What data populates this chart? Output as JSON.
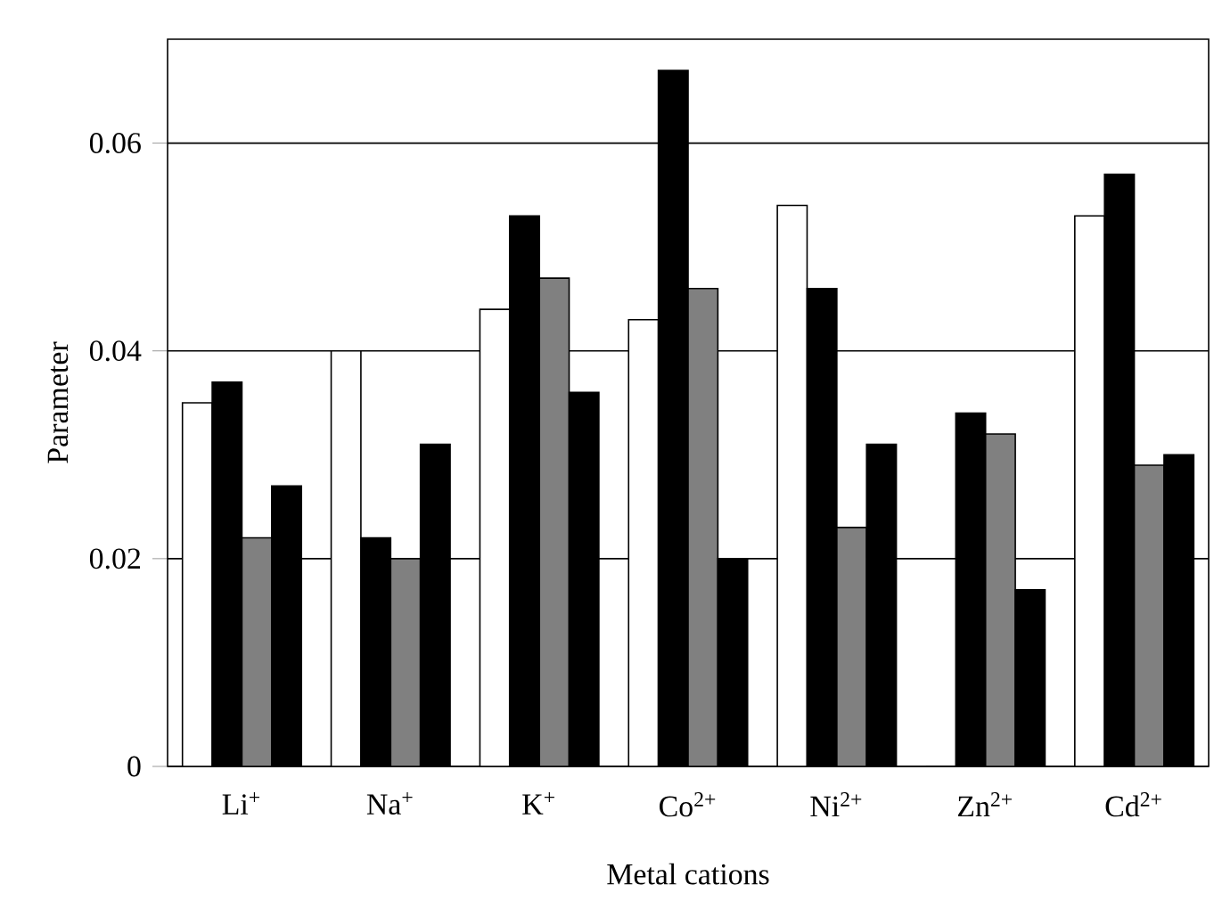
{
  "chart_data": {
    "type": "bar",
    "xlabel": "Metal cations",
    "ylabel": "Parameter",
    "categories": [
      "Li$^{+}$",
      "Na$^{+}$",
      "K$^{+}$",
      "Co$^{2+}$",
      "Ni$^{2+}$",
      "Zn$^{2+}$",
      "Cd$^{2+}$"
    ],
    "series": [
      {
        "color": "#ffffff",
        "values": [
          0.035,
          0.04,
          0.044,
          0.043,
          0.054,
          0,
          0.053
        ]
      },
      {
        "color": "#000000",
        "values": [
          0.037,
          0.022,
          0.053,
          0.067,
          0.046,
          0.034,
          0.057
        ]
      },
      {
        "color": "#808080",
        "values": [
          0.022,
          0.02,
          0.047,
          0.046,
          0.023,
          0.032,
          0.029
        ]
      },
      {
        "color": "#000000",
        "values": [
          0.027,
          0.031,
          0.036,
          0.02,
          0.031,
          0.017,
          0.03
        ]
      }
    ],
    "ylim": [
      0,
      0.07
    ],
    "yticks": [
      0,
      0.02,
      0.04,
      0.06
    ],
    "grid": "y"
  }
}
